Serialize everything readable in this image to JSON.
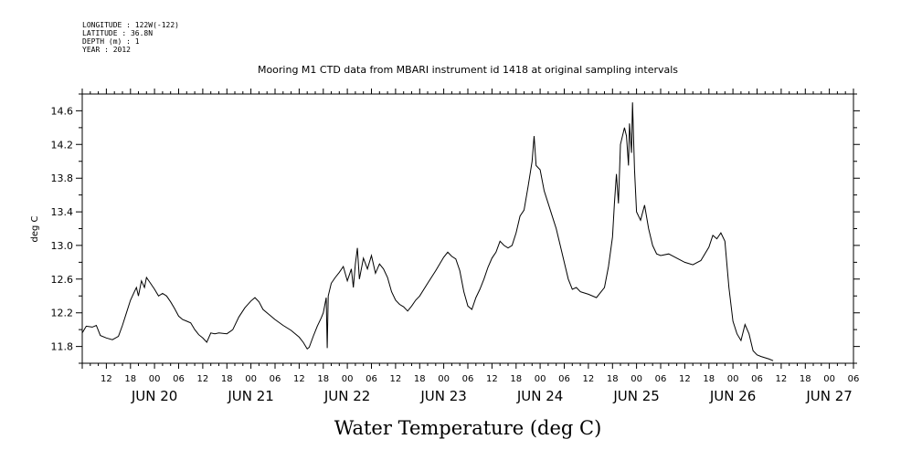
{
  "header": {
    "longitude": "LONGITUDE : 122W(-122)",
    "latitude": "LATITUDE : 36.8N",
    "depth": "DEPTH (m) : 1",
    "year": "YEAR : 2012"
  },
  "chart_data": {
    "type": "line",
    "title": "Mooring M1 CTD data from MBARI instrument id 1418 at original sampling intervals",
    "xlabel": "Water Temperature (deg C)",
    "ylabel": "deg C",
    "ylim": [
      11.6,
      14.8
    ],
    "xlim": [
      "2012-06-19T06:00",
      "2012-06-27T06:00"
    ],
    "y_ticks": [
      "11.8",
      "12.2",
      "12.6",
      "13.0",
      "13.4",
      "13.8",
      "14.2",
      "14.6"
    ],
    "x_tick_labels": [
      {
        "t": "2012-06-19T12:00",
        "label": "12"
      },
      {
        "t": "2012-06-19T18:00",
        "label": "18"
      },
      {
        "t": "2012-06-20T00:00",
        "label": "00"
      },
      {
        "t": "2012-06-20T06:00",
        "label": "06"
      },
      {
        "t": "2012-06-20T12:00",
        "label": "12"
      },
      {
        "t": "2012-06-20T18:00",
        "label": "18"
      },
      {
        "t": "2012-06-21T00:00",
        "label": "00"
      },
      {
        "t": "2012-06-21T06:00",
        "label": "06"
      },
      {
        "t": "2012-06-21T12:00",
        "label": "12"
      },
      {
        "t": "2012-06-21T18:00",
        "label": "18"
      },
      {
        "t": "2012-06-22T00:00",
        "label": "00"
      },
      {
        "t": "2012-06-22T06:00",
        "label": "06"
      },
      {
        "t": "2012-06-22T12:00",
        "label": "12"
      },
      {
        "t": "2012-06-22T18:00",
        "label": "18"
      },
      {
        "t": "2012-06-23T00:00",
        "label": "00"
      },
      {
        "t": "2012-06-23T06:00",
        "label": "06"
      },
      {
        "t": "2012-06-23T12:00",
        "label": "12"
      },
      {
        "t": "2012-06-23T18:00",
        "label": "18"
      },
      {
        "t": "2012-06-24T00:00",
        "label": "00"
      },
      {
        "t": "2012-06-24T06:00",
        "label": "06"
      },
      {
        "t": "2012-06-24T12:00",
        "label": "12"
      },
      {
        "t": "2012-06-24T18:00",
        "label": "18"
      },
      {
        "t": "2012-06-25T00:00",
        "label": "00"
      },
      {
        "t": "2012-06-25T06:00",
        "label": "06"
      },
      {
        "t": "2012-06-25T12:00",
        "label": "12"
      },
      {
        "t": "2012-06-25T18:00",
        "label": "18"
      },
      {
        "t": "2012-06-26T00:00",
        "label": "00"
      },
      {
        "t": "2012-06-26T06:00",
        "label": "06"
      },
      {
        "t": "2012-06-26T12:00",
        "label": "12"
      },
      {
        "t": "2012-06-26T18:00",
        "label": "18"
      },
      {
        "t": "2012-06-27T00:00",
        "label": "00"
      },
      {
        "t": "2012-06-27T06:00",
        "label": "06"
      }
    ],
    "day_labels": [
      {
        "t": "2012-06-20T00:00",
        "label": "JUN 20"
      },
      {
        "t": "2012-06-21T00:00",
        "label": "JUN 21"
      },
      {
        "t": "2012-06-22T00:00",
        "label": "JUN 22"
      },
      {
        "t": "2012-06-23T00:00",
        "label": "JUN 23"
      },
      {
        "t": "2012-06-24T00:00",
        "label": "JUN 24"
      },
      {
        "t": "2012-06-25T00:00",
        "label": "JUN 25"
      },
      {
        "t": "2012-06-26T00:00",
        "label": "JUN 26"
      },
      {
        "t": "2012-06-27T00:00",
        "label": "JUN 27"
      }
    ],
    "series": [
      {
        "color": "#000000",
        "points": [
          [
            "2012-06-19T06:00",
            11.96
          ],
          [
            "2012-06-19T07:00",
            12.04
          ],
          [
            "2012-06-19T08:30",
            12.03
          ],
          [
            "2012-06-19T09:30",
            12.05
          ],
          [
            "2012-06-19T10:30",
            11.93
          ],
          [
            "2012-06-19T12:00",
            11.9
          ],
          [
            "2012-06-19T13:30",
            11.88
          ],
          [
            "2012-06-19T15:00",
            11.92
          ],
          [
            "2012-06-19T16:00",
            12.05
          ],
          [
            "2012-06-19T17:00",
            12.2
          ],
          [
            "2012-06-19T18:00",
            12.35
          ],
          [
            "2012-06-19T19:00",
            12.45
          ],
          [
            "2012-06-19T19:30",
            12.5
          ],
          [
            "2012-06-19T20:00",
            12.4
          ],
          [
            "2012-06-19T20:45",
            12.58
          ],
          [
            "2012-06-19T21:30",
            12.5
          ],
          [
            "2012-06-19T22:00",
            12.62
          ],
          [
            "2012-06-19T23:00",
            12.55
          ],
          [
            "2012-06-20T00:00",
            12.48
          ],
          [
            "2012-06-20T01:00",
            12.4
          ],
          [
            "2012-06-20T02:00",
            12.43
          ],
          [
            "2012-06-20T03:00",
            12.4
          ],
          [
            "2012-06-20T04:00",
            12.33
          ],
          [
            "2012-06-20T05:00",
            12.25
          ],
          [
            "2012-06-20T06:00",
            12.16
          ],
          [
            "2012-06-20T07:00",
            12.12
          ],
          [
            "2012-06-20T08:00",
            12.1
          ],
          [
            "2012-06-20T09:00",
            12.08
          ],
          [
            "2012-06-20T10:00",
            12.0
          ],
          [
            "2012-06-20T11:00",
            11.94
          ],
          [
            "2012-06-20T12:00",
            11.9
          ],
          [
            "2012-06-20T13:00",
            11.85
          ],
          [
            "2012-06-20T14:00",
            11.96
          ],
          [
            "2012-06-20T15:00",
            11.95
          ],
          [
            "2012-06-20T16:00",
            11.96
          ],
          [
            "2012-06-20T18:00",
            11.95
          ],
          [
            "2012-06-20T19:30",
            12.0
          ],
          [
            "2012-06-20T21:00",
            12.15
          ],
          [
            "2012-06-20T22:30",
            12.26
          ],
          [
            "2012-06-21T00:00",
            12.34
          ],
          [
            "2012-06-21T01:00",
            12.38
          ],
          [
            "2012-06-21T02:00",
            12.33
          ],
          [
            "2012-06-21T03:00",
            12.24
          ],
          [
            "2012-06-21T04:00",
            12.2
          ],
          [
            "2012-06-21T06:00",
            12.12
          ],
          [
            "2012-06-21T08:00",
            12.05
          ],
          [
            "2012-06-21T10:00",
            11.99
          ],
          [
            "2012-06-21T12:00",
            11.91
          ],
          [
            "2012-06-21T13:00",
            11.85
          ],
          [
            "2012-06-21T14:00",
            11.77
          ],
          [
            "2012-06-21T14:30",
            11.79
          ],
          [
            "2012-06-21T15:30",
            11.92
          ],
          [
            "2012-06-21T16:30",
            12.04
          ],
          [
            "2012-06-21T17:30",
            12.14
          ],
          [
            "2012-06-21T18:00",
            12.2
          ],
          [
            "2012-06-21T18:45",
            12.38
          ],
          [
            "2012-06-21T19:00",
            11.78
          ],
          [
            "2012-06-21T19:15",
            12.4
          ],
          [
            "2012-06-21T20:00",
            12.55
          ],
          [
            "2012-06-21T21:00",
            12.62
          ],
          [
            "2012-06-21T22:00",
            12.68
          ],
          [
            "2012-06-21T23:00",
            12.75
          ],
          [
            "2012-06-22T00:00",
            12.58
          ],
          [
            "2012-06-22T01:00",
            12.72
          ],
          [
            "2012-06-22T01:30",
            12.5
          ],
          [
            "2012-06-22T02:00",
            12.78
          ],
          [
            "2012-06-22T02:30",
            12.97
          ],
          [
            "2012-06-22T03:00",
            12.6
          ],
          [
            "2012-06-22T04:00",
            12.85
          ],
          [
            "2012-06-22T05:00",
            12.72
          ],
          [
            "2012-06-22T06:00",
            12.88
          ],
          [
            "2012-06-22T07:00",
            12.67
          ],
          [
            "2012-06-22T08:00",
            12.78
          ],
          [
            "2012-06-22T09:00",
            12.72
          ],
          [
            "2012-06-22T10:00",
            12.62
          ],
          [
            "2012-06-22T11:00",
            12.45
          ],
          [
            "2012-06-22T12:00",
            12.35
          ],
          [
            "2012-06-22T13:00",
            12.3
          ],
          [
            "2012-06-22T14:00",
            12.27
          ],
          [
            "2012-06-22T15:00",
            12.22
          ],
          [
            "2012-06-22T16:00",
            12.28
          ],
          [
            "2012-06-22T17:00",
            12.35
          ],
          [
            "2012-06-22T18:00",
            12.4
          ],
          [
            "2012-06-22T20:00",
            12.55
          ],
          [
            "2012-06-22T22:00",
            12.7
          ],
          [
            "2012-06-23T00:00",
            12.86
          ],
          [
            "2012-06-23T01:00",
            12.92
          ],
          [
            "2012-06-23T02:00",
            12.87
          ],
          [
            "2012-06-23T03:00",
            12.84
          ],
          [
            "2012-06-23T04:00",
            12.7
          ],
          [
            "2012-06-23T05:00",
            12.45
          ],
          [
            "2012-06-23T06:00",
            12.28
          ],
          [
            "2012-06-23T07:00",
            12.24
          ],
          [
            "2012-06-23T08:00",
            12.38
          ],
          [
            "2012-06-23T09:00",
            12.48
          ],
          [
            "2012-06-23T10:00",
            12.6
          ],
          [
            "2012-06-23T11:00",
            12.74
          ],
          [
            "2012-06-23T12:00",
            12.85
          ],
          [
            "2012-06-23T13:00",
            12.92
          ],
          [
            "2012-06-23T14:00",
            13.05
          ],
          [
            "2012-06-23T15:00",
            13.0
          ],
          [
            "2012-06-23T16:00",
            12.97
          ],
          [
            "2012-06-23T17:00",
            13.0
          ],
          [
            "2012-06-23T18:00",
            13.15
          ],
          [
            "2012-06-23T19:00",
            13.35
          ],
          [
            "2012-06-23T20:00",
            13.42
          ],
          [
            "2012-06-23T21:00",
            13.7
          ],
          [
            "2012-06-23T22:00",
            14.0
          ],
          [
            "2012-06-23T22:30",
            14.3
          ],
          [
            "2012-06-23T23:00",
            13.95
          ],
          [
            "2012-06-24T00:00",
            13.9
          ],
          [
            "2012-06-24T01:00",
            13.65
          ],
          [
            "2012-06-24T02:00",
            13.5
          ],
          [
            "2012-06-24T03:00",
            13.35
          ],
          [
            "2012-06-24T04:00",
            13.2
          ],
          [
            "2012-06-24T05:00",
            13.0
          ],
          [
            "2012-06-24T06:00",
            12.8
          ],
          [
            "2012-06-24T07:00",
            12.6
          ],
          [
            "2012-06-24T08:00",
            12.48
          ],
          [
            "2012-06-24T09:00",
            12.5
          ],
          [
            "2012-06-24T10:00",
            12.45
          ],
          [
            "2012-06-24T12:00",
            12.42
          ],
          [
            "2012-06-24T14:00",
            12.38
          ],
          [
            "2012-06-24T16:00",
            12.5
          ],
          [
            "2012-06-24T17:00",
            12.75
          ],
          [
            "2012-06-24T18:00",
            13.1
          ],
          [
            "2012-06-24T18:30",
            13.5
          ],
          [
            "2012-06-24T19:00",
            13.85
          ],
          [
            "2012-06-24T19:30",
            13.5
          ],
          [
            "2012-06-24T20:00",
            14.2
          ],
          [
            "2012-06-24T21:00",
            14.4
          ],
          [
            "2012-06-24T21:30",
            14.3
          ],
          [
            "2012-06-24T22:00",
            13.95
          ],
          [
            "2012-06-24T22:15",
            14.45
          ],
          [
            "2012-06-24T22:45",
            14.1
          ],
          [
            "2012-06-24T23:00",
            14.7
          ],
          [
            "2012-06-24T23:30",
            13.9
          ],
          [
            "2012-06-25T00:00",
            13.4
          ],
          [
            "2012-06-25T01:00",
            13.3
          ],
          [
            "2012-06-25T02:00",
            13.48
          ],
          [
            "2012-06-25T03:00",
            13.2
          ],
          [
            "2012-06-25T04:00",
            13.0
          ],
          [
            "2012-06-25T05:00",
            12.9
          ],
          [
            "2012-06-25T06:00",
            12.88
          ],
          [
            "2012-06-25T08:00",
            12.9
          ],
          [
            "2012-06-25T10:00",
            12.85
          ],
          [
            "2012-06-25T12:00",
            12.8
          ],
          [
            "2012-06-25T14:00",
            12.77
          ],
          [
            "2012-06-25T16:00",
            12.82
          ],
          [
            "2012-06-25T18:00",
            12.98
          ],
          [
            "2012-06-25T19:00",
            13.12
          ],
          [
            "2012-06-25T20:00",
            13.08
          ],
          [
            "2012-06-25T21:00",
            13.15
          ],
          [
            "2012-06-25T22:00",
            13.05
          ],
          [
            "2012-06-25T23:00",
            12.5
          ],
          [
            "2012-06-26T00:00",
            12.1
          ],
          [
            "2012-06-26T01:00",
            11.95
          ],
          [
            "2012-06-26T02:00",
            11.87
          ],
          [
            "2012-06-26T03:00",
            12.06
          ],
          [
            "2012-06-26T04:00",
            11.95
          ],
          [
            "2012-06-26T05:00",
            11.75
          ],
          [
            "2012-06-26T06:00",
            11.7
          ],
          [
            "2012-06-26T07:00",
            11.68
          ],
          [
            "2012-06-26T09:00",
            11.65
          ],
          [
            "2012-06-26T10:00",
            11.63
          ]
        ]
      }
    ]
  }
}
